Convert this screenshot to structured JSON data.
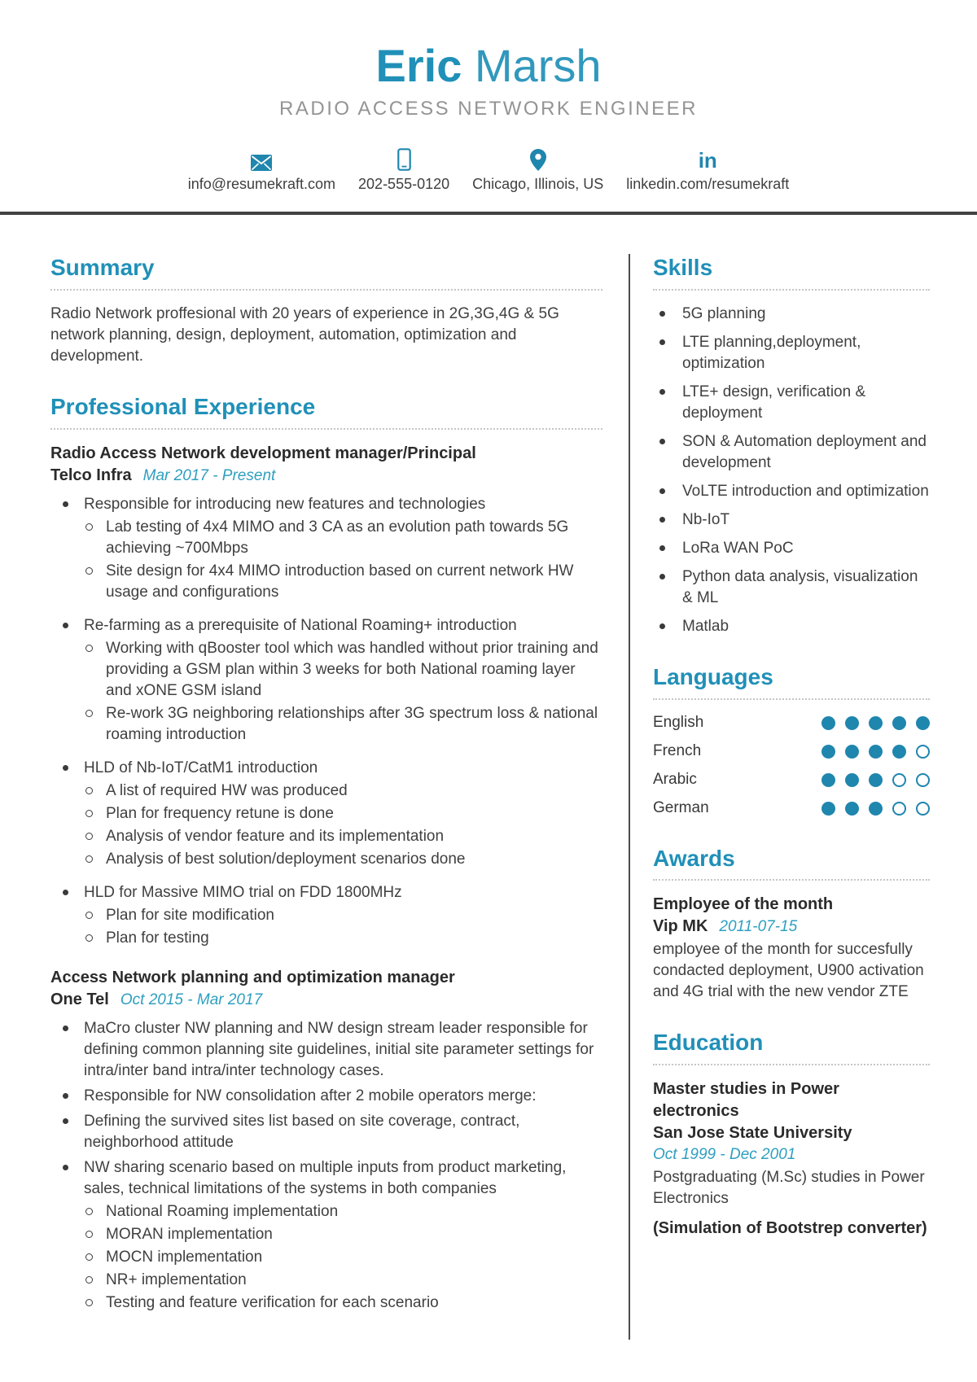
{
  "header": {
    "first_name": "Eric",
    "last_name": "Marsh",
    "job_title": "RADIO ACCESS NETWORK ENGINEER",
    "contacts": [
      {
        "icon": "envelope-icon",
        "label": "info@resumekraft.com"
      },
      {
        "icon": "phone-icon",
        "label": "202-555-0120"
      },
      {
        "icon": "location-icon",
        "label": "Chicago, Illinois, US"
      },
      {
        "icon": "linkedin-icon",
        "label": "linkedin.com/resumekraft"
      }
    ]
  },
  "summary": {
    "heading": "Summary",
    "text": "Radio Network proffesional with 20 years of experience in 2G,3G,4G & 5G network planning, design, deployment, automation, optimization and development."
  },
  "experience": {
    "heading": "Professional Experience",
    "jobs": [
      {
        "title": "Radio Access Network development manager/Principal",
        "company": "Telco Infra",
        "dates": "Mar 2017 - Present",
        "spread": true,
        "bullets": [
          {
            "text": "Responsible for introducing new features and technologies",
            "subs": [
              "Lab testing of 4x4 MIMO and 3 CA as an evolution path towards 5G achieving ~700Mbps",
              "Site design for 4x4 MIMO introduction based on current network HW usage and configurations"
            ]
          },
          {
            "text": "Re-farming as a prerequisite of National Roaming+ introduction",
            "subs": [
              "Working with qBooster tool which was handled without prior training and providing a GSM plan within 3 weeks for both National roaming layer and xONE GSM island",
              "Re-work 3G neighboring relationships after 3G spectrum loss & national roaming introduction"
            ]
          },
          {
            "text": "HLD of Nb-IoT/CatM1 introduction",
            "subs": [
              "A list of required HW was produced",
              "Plan for frequency retune is done",
              "Analysis of vendor feature and its implementation",
              "Analysis of best solution/deployment scenarios done"
            ]
          },
          {
            "text": "HLD for Massive MIMO trial on FDD 1800MHz",
            "subs": [
              "Plan for site modification",
              "Plan for testing"
            ]
          }
        ]
      },
      {
        "title": "Access Network planning and optimization manager",
        "company": "One Tel",
        "dates": "Oct 2015 - Mar 2017",
        "spread": false,
        "bullets": [
          {
            "text": "MaCro cluster NW planning and NW design stream leader responsible for defining common planning site guidelines, initial site parameter settings for intra/inter band intra/inter technology cases.",
            "subs": []
          },
          {
            "text": "Responsible for NW consolidation after 2 mobile operators merge:",
            "subs": []
          },
          {
            "text": "Defining the survived sites list based on site coverage, contract, neighborhood attitude",
            "subs": []
          },
          {
            "text": "NW sharing scenario based on multiple inputs from product marketing, sales, technical limitations of the systems in both companies",
            "subs": [
              "National Roaming implementation",
              "MORAN implementation",
              "MOCN implementation",
              "NR+ implementation",
              "Testing and feature verification for each scenario"
            ]
          }
        ]
      }
    ]
  },
  "skills": {
    "heading": "Skills",
    "items": [
      "5G planning",
      "LTE planning,deployment, optimization",
      "LTE+ design, verification & deployment",
      "SON & Automation deployment and development",
      "VoLTE introduction and optimization",
      "Nb-IoT",
      "LoRa WAN PoC",
      "Python data analysis, visualization & ML",
      "Matlab"
    ]
  },
  "languages": {
    "heading": "Languages",
    "max_level": 5,
    "items": [
      {
        "name": "English",
        "level": 5
      },
      {
        "name": "French",
        "level": 4
      },
      {
        "name": "Arabic",
        "level": 3
      },
      {
        "name": "German",
        "level": 3
      }
    ]
  },
  "awards": {
    "heading": "Awards",
    "title": "Employee of the month",
    "issuer": "Vip MK",
    "date": "2011-07-15",
    "description": "employee of the month for succesfully condacted deployment, U900 activation and 4G trial with the new vendor ZTE"
  },
  "education": {
    "heading": "Education",
    "degree": "Master studies in Power electronics",
    "school": "San Jose State University",
    "dates": "Oct 1999 - Dec 2001",
    "description": "Postgraduating (M.Sc) studies in Power  Electronics",
    "note": "(Simulation of Bootstrep converter)"
  },
  "colors": {
    "accent": "#2090b8",
    "date_accent": "#2e9fc0",
    "icon_accent": "#1f86ae",
    "body_text": "#404040"
  }
}
